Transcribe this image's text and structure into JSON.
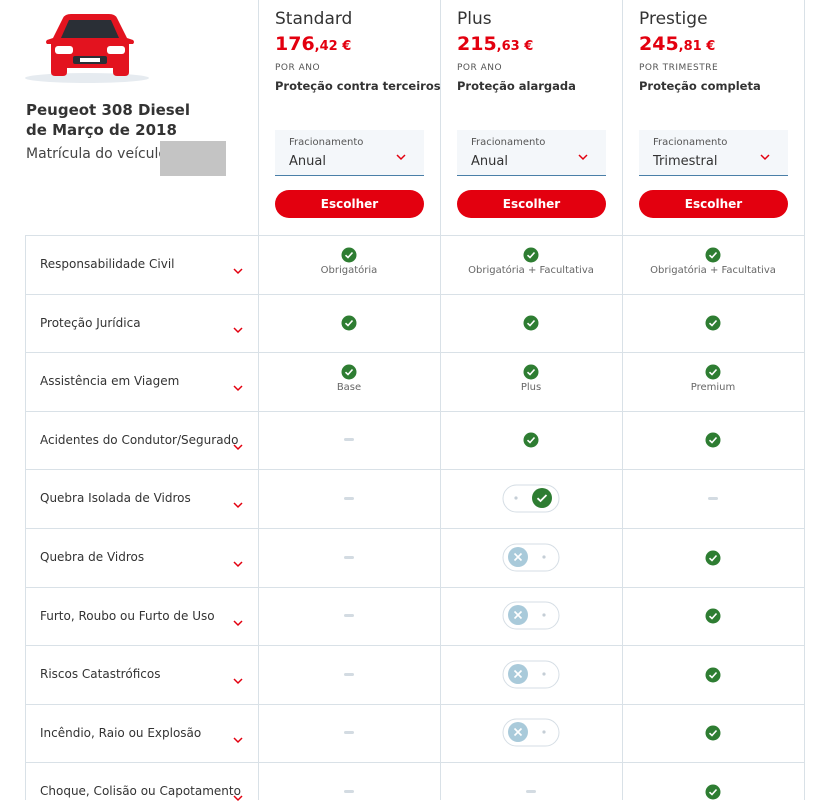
{
  "vehicle": {
    "model": "Peugeot 308 Diesel",
    "date": "de Março de 2018",
    "plate_label": "Matrícula do veículo:"
  },
  "plans": [
    {
      "name": "Standard",
      "price_int": "176",
      "price_dec": ",42 €",
      "period": "POR ANO",
      "coverage": "Proteção contra terceiros",
      "select_label": "Fracionamento",
      "select_value": "Anual",
      "button": "Escolher"
    },
    {
      "name": "Plus",
      "price_int": "215",
      "price_dec": ",63 €",
      "period": "POR ANO",
      "coverage": "Proteção alargada",
      "select_label": "Fracionamento",
      "select_value": "Anual",
      "button": "Escolher"
    },
    {
      "name": "Prestige",
      "price_int": "245",
      "price_dec": ",81 €",
      "period": "POR TRIMESTRE",
      "coverage": "Proteção completa",
      "select_label": "Fracionamento",
      "select_value": "Trimestral",
      "button": "Escolher"
    }
  ],
  "rows": [
    {
      "label": "Responsabilidade Civil",
      "cells": [
        {
          "state": "check",
          "note": "Obrigatória"
        },
        {
          "state": "check",
          "note": "Obrigatória + Facultativa"
        },
        {
          "state": "check",
          "note": "Obrigatória + Facultativa"
        }
      ]
    },
    {
      "label": "Proteção Jurídica",
      "cells": [
        {
          "state": "check"
        },
        {
          "state": "check"
        },
        {
          "state": "check"
        }
      ]
    },
    {
      "label": "Assistência em Viagem",
      "cells": [
        {
          "state": "check",
          "note": "Base"
        },
        {
          "state": "check",
          "note": "Plus"
        },
        {
          "state": "check",
          "note": "Premium"
        }
      ]
    },
    {
      "label": "Acidentes do Condutor/Segurado",
      "cells": [
        {
          "state": "dash"
        },
        {
          "state": "check"
        },
        {
          "state": "check"
        }
      ]
    },
    {
      "label": "Quebra Isolada de Vidros",
      "cells": [
        {
          "state": "dash"
        },
        {
          "state": "toggle-on"
        },
        {
          "state": "dash"
        }
      ]
    },
    {
      "label": "Quebra de Vidros",
      "cells": [
        {
          "state": "dash"
        },
        {
          "state": "toggle-off"
        },
        {
          "state": "check"
        }
      ]
    },
    {
      "label": "Furto, Roubo ou Furto de Uso",
      "cells": [
        {
          "state": "dash"
        },
        {
          "state": "toggle-off"
        },
        {
          "state": "check"
        }
      ]
    },
    {
      "label": "Riscos Catastróficos",
      "cells": [
        {
          "state": "dash"
        },
        {
          "state": "toggle-off"
        },
        {
          "state": "check"
        }
      ]
    },
    {
      "label": "Incêndio, Raio ou Explosão",
      "cells": [
        {
          "state": "dash"
        },
        {
          "state": "toggle-off"
        },
        {
          "state": "check"
        }
      ]
    },
    {
      "label": "Choque, Colisão ou Capotamento",
      "cells": [
        {
          "state": "dash"
        },
        {
          "state": "dash"
        },
        {
          "state": "check"
        }
      ]
    }
  ]
}
